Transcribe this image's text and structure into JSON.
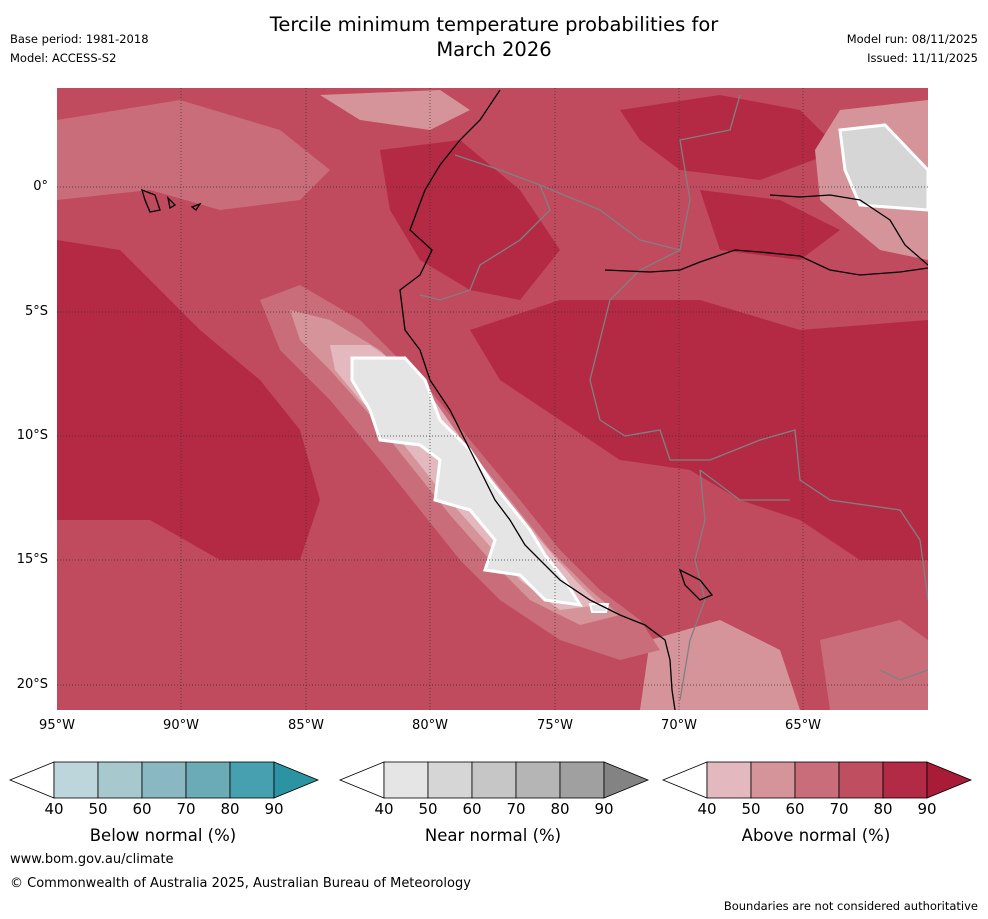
{
  "header": {
    "title_line1": "Tercile minimum temperature probabilities for",
    "title_line2": "March 2026",
    "base_period": "Base period: 1981-2018",
    "model": "Model: ACCESS-S2",
    "model_run": "Model run: 08/11/2025",
    "issued": "Issued: 11/11/2025"
  },
  "map": {
    "lat_labels": [
      "0°",
      "5°S",
      "10°S",
      "15°S",
      "20°S"
    ],
    "lon_labels": [
      "95°W",
      "90°W",
      "85°W",
      "80°W",
      "75°W",
      "70°W",
      "65°W"
    ],
    "colors": {
      "land_border": "#808080",
      "coastline": "#000000",
      "gridline": "#333333"
    }
  },
  "legends": [
    {
      "label": "Below normal (%)",
      "ticks": [
        "40",
        "50",
        "60",
        "70",
        "80",
        "90"
      ],
      "colors": [
        "#ffffff",
        "#bcd6db",
        "#a7c9ce",
        "#8ab8c2",
        "#6aabb5",
        "#46a0b0",
        "#2c93a3"
      ]
    },
    {
      "label": "Near normal (%)",
      "ticks": [
        "40",
        "50",
        "60",
        "70",
        "80",
        "90"
      ],
      "colors": [
        "#ffffff",
        "#e5e5e5",
        "#d6d6d6",
        "#c6c6c6",
        "#b5b5b5",
        "#a0a0a0",
        "#838383"
      ]
    },
    {
      "label": "Above normal (%)",
      "ticks": [
        "40",
        "50",
        "60",
        "70",
        "80",
        "90"
      ],
      "colors": [
        "#ffffff",
        "#e3b9bf",
        "#d59499",
        "#c96d7b",
        "#bf4f60",
        "#b22a45",
        "#a81c38"
      ]
    }
  ],
  "footer": {
    "website": "www.bom.gov.au/climate",
    "copyright": "© Commonwealth of Australia 2025, Australian Bureau of Meteorology",
    "disclaimer": "Boundaries are not considered authoritative"
  }
}
